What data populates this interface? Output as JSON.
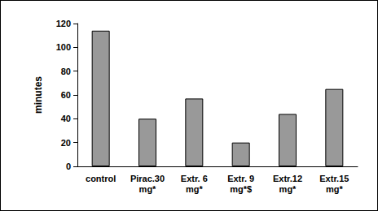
{
  "chart_data": {
    "type": "bar",
    "y_label": "minutes",
    "categories": [
      "control",
      "Pirac.30\nmg*",
      "Extr. 6\nmg*",
      "Extr. 9\nmg*$",
      "Extr.12\nmg*",
      "Extr.15\nmg*"
    ],
    "values": [
      114,
      40,
      57,
      20,
      44,
      65
    ],
    "color": "#999999",
    "ylim": [
      0,
      120
    ],
    "yticks": [
      0,
      20,
      40,
      60,
      80,
      100,
      120
    ],
    "grid": false
  }
}
